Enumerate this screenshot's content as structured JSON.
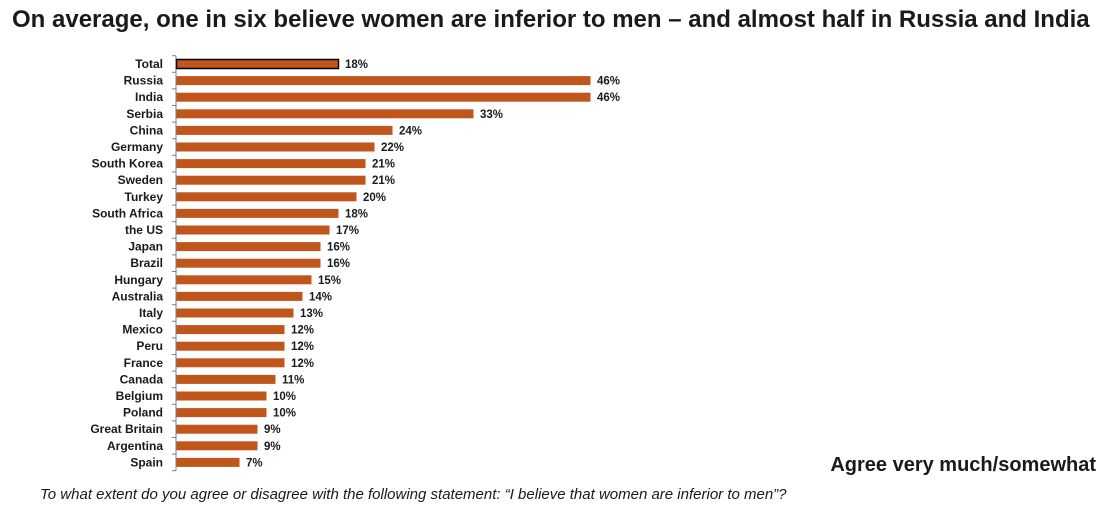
{
  "title": "On average, one in six believe women are inferior to men – and almost half in Russia and India",
  "measure_label": "Agree very much/somewhat",
  "question": "To what extent do you agree or disagree with the following statement: “I believe that women are inferior to men”?",
  "colors": {
    "bar": "#c0561b",
    "total_bar": "#c0561b",
    "total_outline": "#000000",
    "axis": "#7f7f7f"
  },
  "chart_data": {
    "type": "bar",
    "orientation": "horizontal",
    "categories": [
      "Total",
      "Russia",
      "India",
      "Serbia",
      "China",
      "Germany",
      "South Korea",
      "Sweden",
      "Turkey",
      "South Africa",
      "the US",
      "Japan",
      "Brazil",
      "Hungary",
      "Australia",
      "Italy",
      "Mexico",
      "Peru",
      "France",
      "Canada",
      "Belgium",
      "Poland",
      "Great Britain",
      "Argentina",
      "Spain"
    ],
    "values": [
      18,
      46,
      46,
      33,
      24,
      22,
      21,
      21,
      20,
      18,
      17,
      16,
      16,
      15,
      14,
      13,
      12,
      12,
      12,
      11,
      10,
      10,
      9,
      9,
      7
    ],
    "value_labels": [
      "18%",
      "46%",
      "46%",
      "33%",
      "24%",
      "22%",
      "21%",
      "21%",
      "20%",
      "18%",
      "17%",
      "16%",
      "16%",
      "15%",
      "14%",
      "13%",
      "12%",
      "12%",
      "12%",
      "11%",
      "10%",
      "10%",
      "9%",
      "9%",
      "7%"
    ],
    "highlighted_category": "Total",
    "xlim": [
      0,
      50
    ],
    "grid": false
  }
}
